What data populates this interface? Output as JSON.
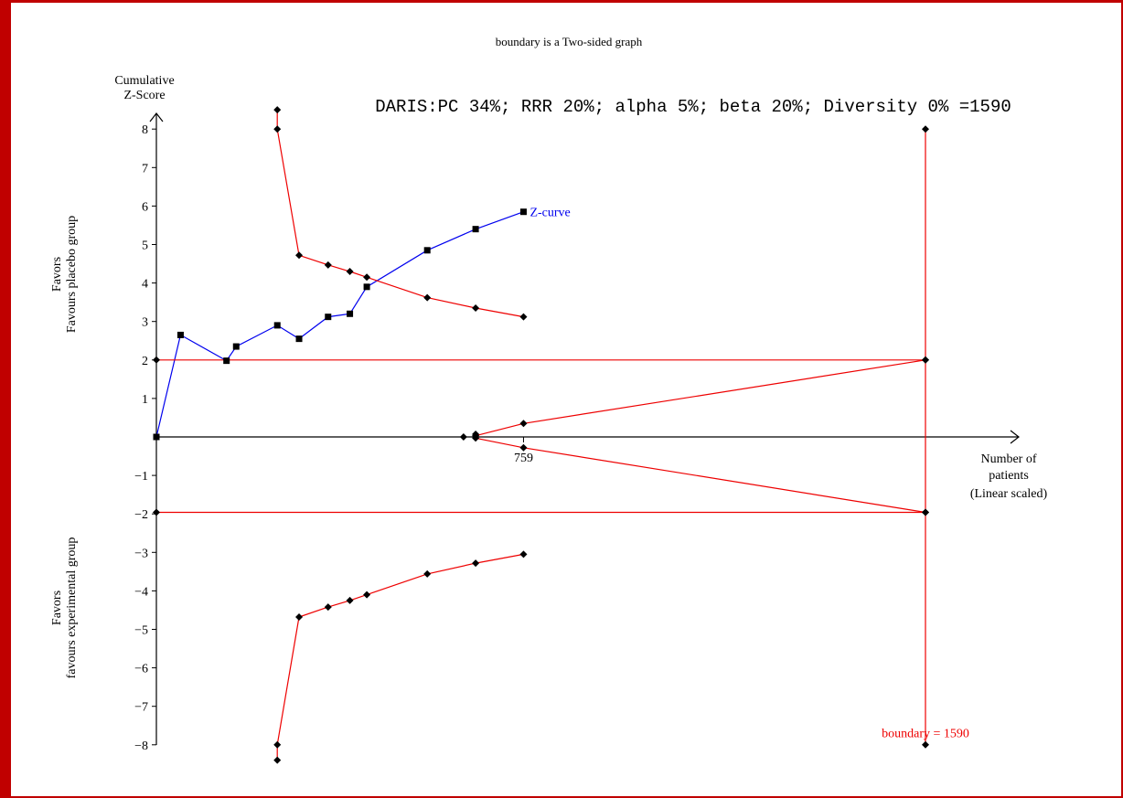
{
  "chart_data": {
    "type": "line",
    "title": "boundary is a Two-sided graph",
    "info_text": "DARIS:PC 34%; RRR 20%; alpha 5%; beta 20%; Diversity 0% =1590",
    "ylabel": "Cumulative Z-Score",
    "ylabel_lines": [
      "Cumulative",
      "Z-Score"
    ],
    "xlabel_lines": [
      "Number of",
      "patients",
      "(Linear scaled)"
    ],
    "upper_side_label": [
      "Favors",
      "Favours placebo group"
    ],
    "lower_side_label": [
      "Favors",
      "favours experimental group"
    ],
    "ylim": [
      -8.5,
      8.5
    ],
    "xlim": [
      0,
      1760
    ],
    "y_ticks": [
      -8,
      -7,
      -6,
      -5,
      -4,
      -3,
      -2,
      -1,
      1,
      2,
      3,
      4,
      5,
      6,
      7,
      8
    ],
    "x_tick_label": "759",
    "x_tick_value": 759,
    "boundary_label": "boundary = 1590",
    "boundary_x": 1590,
    "colors": {
      "z_curve": "#0000ee",
      "boundary": "#ee0000",
      "frame": "#c00000",
      "axis": "#000000",
      "marker": "#000000"
    },
    "series": [
      {
        "name": "Z-curve",
        "kind": "z-curve",
        "x": [
          0,
          50,
          145,
          165,
          250,
          295,
          355,
          400,
          435,
          560,
          660,
          759
        ],
        "y": [
          0,
          2.65,
          1.98,
          2.35,
          2.9,
          2.55,
          3.12,
          3.2,
          3.9,
          4.85,
          5.4,
          5.85
        ]
      },
      {
        "kind": "upper-monitoring-boundary",
        "x": [
          250,
          250,
          295,
          355,
          400,
          435,
          560,
          660,
          759
        ],
        "y": [
          8.5,
          8,
          4.72,
          4.47,
          4.3,
          4.15,
          3.62,
          3.35,
          3.12
        ]
      },
      {
        "kind": "lower-monitoring-boundary",
        "x": [
          250,
          250,
          295,
          355,
          400,
          435,
          560,
          660,
          759
        ],
        "y": [
          -8.4,
          -8,
          -4.68,
          -4.42,
          -4.25,
          -4.1,
          -3.56,
          -3.28,
          -3.05
        ]
      },
      {
        "kind": "upper-futility",
        "x": [
          660,
          759,
          1590
        ],
        "y": [
          0.03,
          0.35,
          2
        ]
      },
      {
        "kind": "lower-futility",
        "x": [
          660,
          759,
          1590
        ],
        "y": [
          -0.03,
          -0.28,
          -1.96
        ]
      },
      {
        "kind": "conventional-upper",
        "x": [
          0,
          1590
        ],
        "y": [
          2,
          2
        ]
      },
      {
        "kind": "conventional-lower",
        "x": [
          0,
          1590
        ],
        "y": [
          -1.96,
          -1.96
        ]
      },
      {
        "kind": "required-information-size",
        "x": [
          1590,
          1590
        ],
        "y": [
          8,
          -8
        ]
      },
      {
        "kind": "extra-markers",
        "x": [
          635,
          660
        ],
        "y": [
          0,
          0.07
        ]
      }
    ]
  }
}
